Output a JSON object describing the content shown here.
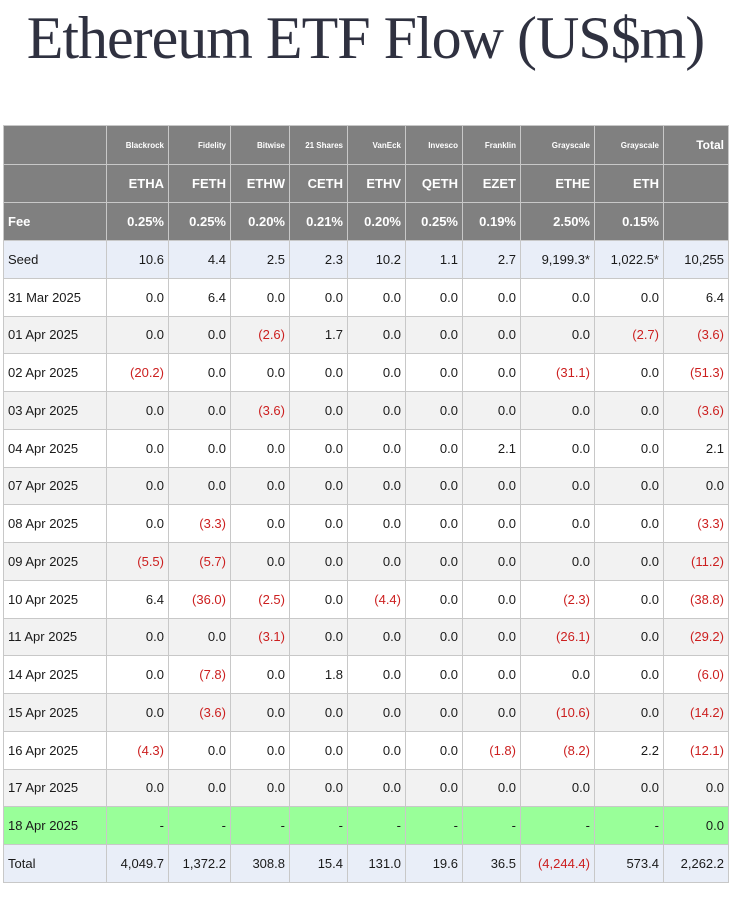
{
  "title": "Ethereum ETF Flow (US$m)",
  "colors": {
    "header_bg": "#808080",
    "negative": "#cc1f1f",
    "highlight_row": "#99ff99",
    "seed_total_row": "#e9eef8"
  },
  "issuers": [
    "Blackrock",
    "Fidelity",
    "Bitwise",
    "21 Shares",
    "VanEck",
    "Invesco",
    "Franklin",
    "Grayscale",
    "Grayscale"
  ],
  "total_label": "Total",
  "tickers": [
    "ETHA",
    "FETH",
    "ETHW",
    "CETH",
    "ETHV",
    "QETH",
    "EZET",
    "ETHE",
    "ETH"
  ],
  "fee_label": "Fee",
  "fees": [
    "0.25%",
    "0.25%",
    "0.20%",
    "0.21%",
    "0.20%",
    "0.25%",
    "0.19%",
    "2.50%",
    "0.15%"
  ],
  "rows": [
    {
      "label": "Seed",
      "kind": "seed",
      "values": [
        "10.6",
        "4.4",
        "2.5",
        "2.3",
        "10.2",
        "1.1",
        "2.7",
        "9,199.3*",
        "1,022.5*"
      ],
      "total": "10,255"
    },
    {
      "label": "31 Mar 2025",
      "kind": "even",
      "values": [
        "0.0",
        "6.4",
        "0.0",
        "0.0",
        "0.0",
        "0.0",
        "0.0",
        "0.0",
        "0.0"
      ],
      "total": "6.4"
    },
    {
      "label": "01 Apr 2025",
      "kind": "odd",
      "values": [
        "0.0",
        "0.0",
        "(2.6)",
        "1.7",
        "0.0",
        "0.0",
        "0.0",
        "0.0",
        "(2.7)"
      ],
      "total": "(3.6)"
    },
    {
      "label": "02 Apr 2025",
      "kind": "even",
      "values": [
        "(20.2)",
        "0.0",
        "0.0",
        "0.0",
        "0.0",
        "0.0",
        "0.0",
        "(31.1)",
        "0.0"
      ],
      "total": "(51.3)"
    },
    {
      "label": "03 Apr 2025",
      "kind": "odd",
      "values": [
        "0.0",
        "0.0",
        "(3.6)",
        "0.0",
        "0.0",
        "0.0",
        "0.0",
        "0.0",
        "0.0"
      ],
      "total": "(3.6)"
    },
    {
      "label": "04 Apr 2025",
      "kind": "even",
      "values": [
        "0.0",
        "0.0",
        "0.0",
        "0.0",
        "0.0",
        "0.0",
        "2.1",
        "0.0",
        "0.0"
      ],
      "total": "2.1"
    },
    {
      "label": "07 Apr 2025",
      "kind": "odd",
      "values": [
        "0.0",
        "0.0",
        "0.0",
        "0.0",
        "0.0",
        "0.0",
        "0.0",
        "0.0",
        "0.0"
      ],
      "total": "0.0"
    },
    {
      "label": "08 Apr 2025",
      "kind": "even",
      "values": [
        "0.0",
        "(3.3)",
        "0.0",
        "0.0",
        "0.0",
        "0.0",
        "0.0",
        "0.0",
        "0.0"
      ],
      "total": "(3.3)"
    },
    {
      "label": "09 Apr 2025",
      "kind": "odd",
      "values": [
        "(5.5)",
        "(5.7)",
        "0.0",
        "0.0",
        "0.0",
        "0.0",
        "0.0",
        "0.0",
        "0.0"
      ],
      "total": "(11.2)"
    },
    {
      "label": "10 Apr 2025",
      "kind": "even",
      "values": [
        "6.4",
        "(36.0)",
        "(2.5)",
        "0.0",
        "(4.4)",
        "0.0",
        "0.0",
        "(2.3)",
        "0.0"
      ],
      "total": "(38.8)"
    },
    {
      "label": "11 Apr 2025",
      "kind": "odd",
      "values": [
        "0.0",
        "0.0",
        "(3.1)",
        "0.0",
        "0.0",
        "0.0",
        "0.0",
        "(26.1)",
        "0.0"
      ],
      "total": "(29.2)"
    },
    {
      "label": "14 Apr 2025",
      "kind": "even",
      "values": [
        "0.0",
        "(7.8)",
        "0.0",
        "1.8",
        "0.0",
        "0.0",
        "0.0",
        "0.0",
        "0.0"
      ],
      "total": "(6.0)"
    },
    {
      "label": "15 Apr 2025",
      "kind": "odd",
      "values": [
        "0.0",
        "(3.6)",
        "0.0",
        "0.0",
        "0.0",
        "0.0",
        "0.0",
        "(10.6)",
        "0.0"
      ],
      "total": "(14.2)"
    },
    {
      "label": "16 Apr 2025",
      "kind": "even",
      "values": [
        "(4.3)",
        "0.0",
        "0.0",
        "0.0",
        "0.0",
        "0.0",
        "(1.8)",
        "(8.2)",
        "2.2"
      ],
      "total": "(12.1)"
    },
    {
      "label": "17 Apr 2025",
      "kind": "odd",
      "values": [
        "0.0",
        "0.0",
        "0.0",
        "0.0",
        "0.0",
        "0.0",
        "0.0",
        "0.0",
        "0.0"
      ],
      "total": "0.0"
    },
    {
      "label": "18 Apr 2025",
      "kind": "latest",
      "values": [
        "-",
        "-",
        "-",
        "-",
        "-",
        "-",
        "-",
        "-",
        "-"
      ],
      "total": "0.0"
    },
    {
      "label": "Total",
      "kind": "total",
      "values": [
        "4,049.7",
        "1,372.2",
        "308.8",
        "15.4",
        "131.0",
        "19.6",
        "36.5",
        "(4,244.4)",
        "573.4"
      ],
      "total": "2,262.2"
    }
  ]
}
